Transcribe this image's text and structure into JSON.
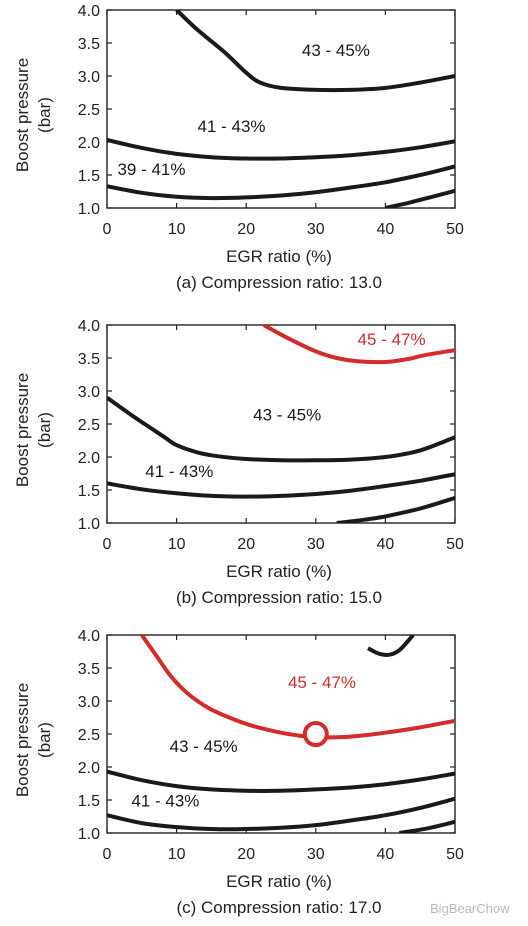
{
  "watermark": "BigBearChow",
  "chart_data": [
    {
      "type": "line",
      "chart_kind": "contour map",
      "title": "(a) Compression ratio: 13.0",
      "xlabel": "EGR ratio (%)",
      "ylabel": "Boost pressure\n(bar)",
      "xlim": [
        0,
        50
      ],
      "ylim": [
        1.0,
        4.0
      ],
      "x_ticks": [
        "0",
        "10",
        "20",
        "30",
        "40",
        "50"
      ],
      "y_ticks": [
        "1.0",
        "1.5",
        "2.0",
        "2.5",
        "3.0",
        "3.5",
        "4.0"
      ],
      "grid": false,
      "series": [
        {
          "color": "#1a1a1a",
          "x": [
            10,
            13,
            17,
            20,
            22,
            25,
            30,
            35,
            40,
            45,
            50
          ],
          "y": [
            4.0,
            3.7,
            3.35,
            3.05,
            2.9,
            2.82,
            2.79,
            2.79,
            2.82,
            2.9,
            3.0
          ]
        },
        {
          "color": "#1a1a1a",
          "x": [
            0,
            5,
            10,
            15,
            20,
            25,
            30,
            35,
            40,
            45,
            50
          ],
          "y": [
            2.03,
            1.91,
            1.82,
            1.77,
            1.75,
            1.75,
            1.77,
            1.8,
            1.85,
            1.92,
            2.01
          ]
        },
        {
          "color": "#1a1a1a",
          "x": [
            0,
            5,
            10,
            15,
            20,
            25,
            30,
            35,
            40,
            45,
            50
          ],
          "y": [
            1.33,
            1.23,
            1.17,
            1.15,
            1.16,
            1.19,
            1.24,
            1.31,
            1.39,
            1.5,
            1.63
          ]
        },
        {
          "color": "#1a1a1a",
          "x": [
            40,
            43,
            46,
            50
          ],
          "y": [
            1.0,
            1.07,
            1.15,
            1.26
          ]
        }
      ],
      "annotations": [
        {
          "text": "43 - 45%",
          "x": 28,
          "y": 3.3,
          "color": "#1a1a1a"
        },
        {
          "text": "41 - 43%",
          "x": 13,
          "y": 2.15,
          "color": "#1a1a1a"
        },
        {
          "text": "39 - 41%",
          "x": 1.5,
          "y": 1.5,
          "color": "#1a1a1a"
        }
      ]
    },
    {
      "type": "line",
      "chart_kind": "contour map",
      "title": "(b) Compression ratio: 15.0",
      "xlabel": "EGR ratio (%)",
      "ylabel": "Boost pressure\n(bar)",
      "xlim": [
        0,
        50
      ],
      "ylim": [
        1.0,
        4.0
      ],
      "x_ticks": [
        "0",
        "10",
        "20",
        "30",
        "40",
        "50"
      ],
      "y_ticks": [
        "1.0",
        "1.5",
        "2.0",
        "2.5",
        "3.0",
        "3.5",
        "4.0"
      ],
      "grid": false,
      "series": [
        {
          "color": "#d42b2b",
          "x": [
            22.5,
            26,
            30,
            33,
            36,
            40,
            43,
            46,
            50
          ],
          "y": [
            4.0,
            3.8,
            3.6,
            3.5,
            3.45,
            3.44,
            3.48,
            3.55,
            3.62
          ]
        },
        {
          "color": "#1a1a1a",
          "x": [
            0,
            4,
            8,
            10,
            13,
            16,
            20,
            25,
            30,
            35,
            40,
            45,
            50
          ],
          "y": [
            2.9,
            2.6,
            2.32,
            2.18,
            2.07,
            2.01,
            1.97,
            1.95,
            1.95,
            1.96,
            2.0,
            2.1,
            2.3
          ]
        },
        {
          "color": "#1a1a1a",
          "x": [
            0,
            5,
            10,
            15,
            20,
            25,
            30,
            35,
            40,
            45,
            50
          ],
          "y": [
            1.6,
            1.51,
            1.45,
            1.41,
            1.4,
            1.41,
            1.44,
            1.49,
            1.56,
            1.64,
            1.74
          ]
        },
        {
          "color": "#1a1a1a",
          "x": [
            33,
            37,
            40,
            45,
            50
          ],
          "y": [
            1.0,
            1.05,
            1.1,
            1.22,
            1.38
          ]
        }
      ],
      "annotations": [
        {
          "text": "45 - 47%",
          "x": 36,
          "y": 3.7,
          "color": "#d42b2b"
        },
        {
          "text": "43 - 45%",
          "x": 21,
          "y": 2.55,
          "color": "#1a1a1a"
        },
        {
          "text": "41 - 43%",
          "x": 5.5,
          "y": 1.7,
          "color": "#1a1a1a"
        }
      ]
    },
    {
      "type": "line",
      "chart_kind": "contour map",
      "title": "(c) Compression ratio: 17.0",
      "xlabel": "EGR ratio (%)",
      "ylabel": "Boost pressure\n(bar)",
      "xlim": [
        0,
        50
      ],
      "ylim": [
        1.0,
        4.0
      ],
      "x_ticks": [
        "0",
        "10",
        "20",
        "30",
        "40",
        "50"
      ],
      "y_ticks": [
        "1.0",
        "1.5",
        "2.0",
        "2.5",
        "3.0",
        "3.5",
        "4.0"
      ],
      "grid": false,
      "series": [
        {
          "color": "#1a1a1a",
          "x": [
            37.5,
            39,
            40.5,
            42,
            44
          ],
          "y": [
            3.8,
            3.72,
            3.7,
            3.77,
            4.0
          ]
        },
        {
          "color": "#d42b2b",
          "x": [
            5,
            7,
            9,
            11,
            13,
            15,
            18,
            21,
            25,
            28,
            30,
            33,
            36,
            40,
            45,
            50
          ],
          "y": [
            4.0,
            3.7,
            3.4,
            3.17,
            3.0,
            2.87,
            2.73,
            2.62,
            2.52,
            2.47,
            2.45,
            2.45,
            2.47,
            2.52,
            2.6,
            2.7
          ]
        },
        {
          "color": "#1a1a1a",
          "x": [
            0,
            5,
            10,
            15,
            20,
            25,
            30,
            35,
            40,
            45,
            50
          ],
          "y": [
            1.93,
            1.8,
            1.71,
            1.66,
            1.64,
            1.64,
            1.66,
            1.69,
            1.74,
            1.81,
            1.9
          ]
        },
        {
          "color": "#1a1a1a",
          "x": [
            0,
            5,
            10,
            15,
            20,
            25,
            30,
            35,
            40,
            45,
            50
          ],
          "y": [
            1.27,
            1.15,
            1.09,
            1.06,
            1.06,
            1.08,
            1.12,
            1.19,
            1.27,
            1.38,
            1.52
          ]
        },
        {
          "color": "#1a1a1a",
          "x": [
            42,
            46,
            50
          ],
          "y": [
            1.0,
            1.07,
            1.17
          ]
        }
      ],
      "markers": [
        {
          "shape": "circle",
          "x": 30,
          "y": 2.5,
          "color": "#d42b2b"
        }
      ],
      "annotations": [
        {
          "text": "45 - 47%",
          "x": 26,
          "y": 3.2,
          "color": "#d42b2b"
        },
        {
          "text": "43 - 45%",
          "x": 9,
          "y": 2.23,
          "color": "#1a1a1a"
        },
        {
          "text": "41 - 43%",
          "x": 3.5,
          "y": 1.4,
          "color": "#1a1a1a"
        }
      ]
    }
  ]
}
